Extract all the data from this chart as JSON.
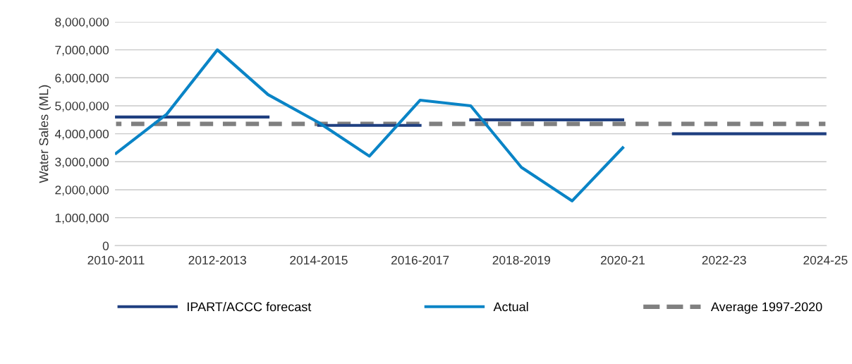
{
  "chart_data": {
    "type": "line",
    "ylabel": "Water Sales (ML)",
    "categories": [
      "2010-2011",
      null,
      "2012-2013",
      null,
      "2014-2015",
      null,
      "2016-2017",
      null,
      "2018-2019",
      null,
      "2020-21",
      null,
      "2022-23",
      null,
      "2024-25"
    ],
    "series": [
      {
        "name": "IPART/ACCC forecast",
        "color": "#1f3f80",
        "values": [
          4600000,
          4600000,
          4600000,
          4600000,
          null,
          null,
          null,
          null,
          null,
          null,
          null,
          null,
          null,
          null,
          null
        ]
      },
      {
        "color": "#1f3f80",
        "values": [
          null,
          null,
          null,
          null,
          4300000,
          4300000,
          4300000,
          null,
          null,
          null,
          null,
          null,
          null,
          null,
          null
        ]
      },
      {
        "color": "#1f3f80",
        "values": [
          null,
          null,
          null,
          null,
          null,
          null,
          null,
          4500000,
          4500000,
          4500000,
          4500000,
          null,
          null,
          null,
          null
        ]
      },
      {
        "color": "#1f3f80",
        "values": [
          null,
          null,
          null,
          null,
          null,
          null,
          null,
          null,
          null,
          null,
          null,
          4000000,
          4000000,
          4000000,
          4000000
        ]
      },
      {
        "name": "Actual",
        "color": "#0a84c6",
        "values": [
          3300000,
          4700000,
          7000000,
          5400000,
          4400000,
          3200000,
          5200000,
          5000000,
          2800000,
          1600000,
          3500000,
          null,
          null,
          null,
          null
        ]
      },
      {
        "name": "Average 1997-2020",
        "color": "#808080",
        "line_style": "dashed",
        "values": [
          4350000,
          4350000,
          4350000,
          4350000,
          4350000,
          4350000,
          4350000,
          4350000,
          4350000,
          4350000,
          4350000,
          4350000,
          4350000,
          4350000,
          4350000
        ]
      }
    ],
    "ylim": [
      0,
      8000000
    ],
    "yticks": [
      0,
      {
        "value": 1000000,
        "label": "1,000,000"
      },
      {
        "value": 2000000,
        "label": "2,000,000"
      },
      {
        "value": 3000000,
        "label": "3,000,000"
      },
      {
        "value": 4000000,
        "label": "4,000,000"
      },
      {
        "value": 5000000,
        "label": "5,000,000"
      },
      {
        "value": 6000000,
        "label": "6,000,000"
      },
      {
        "value": 7000000,
        "label": "7,000,000"
      },
      {
        "value": 8000000,
        "label": "8,000,000"
      }
    ],
    "grid": "y",
    "legend": "bottom",
    "marker": "none",
    "line_style": "solid"
  }
}
